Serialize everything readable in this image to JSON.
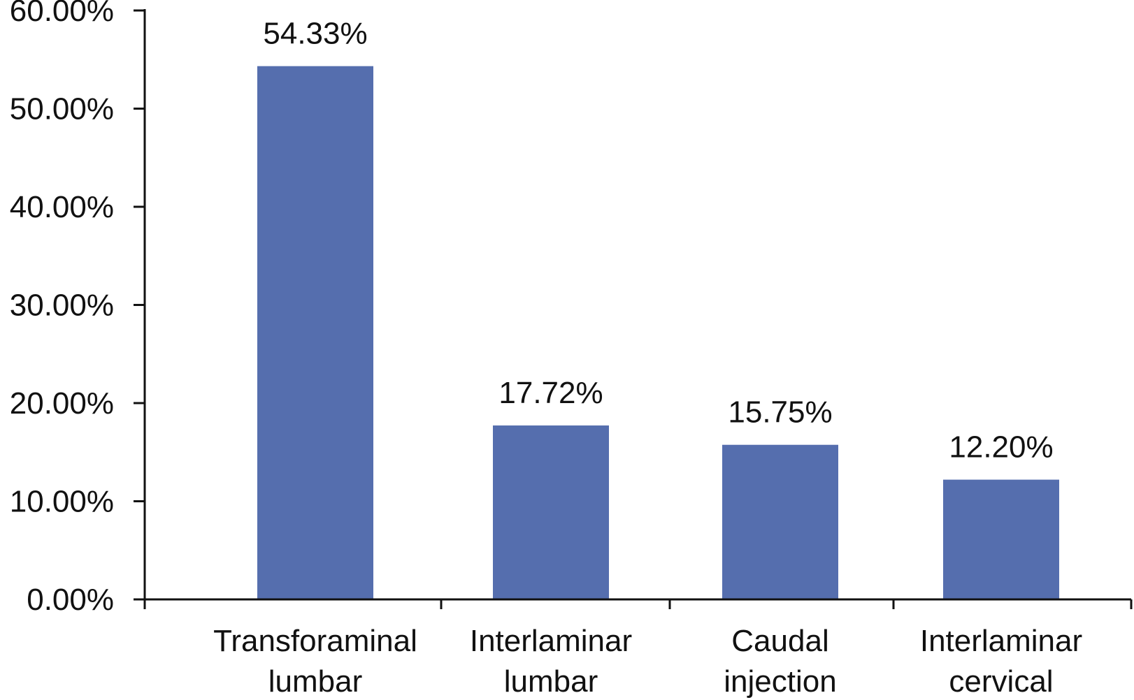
{
  "chart_data": {
    "type": "bar",
    "title": "",
    "xlabel": "",
    "ylabel": "",
    "categories": [
      [
        "Transforaminal",
        "lumbar"
      ],
      [
        "Interlaminar",
        "lumbar"
      ],
      [
        "Caudal",
        "injection"
      ],
      [
        "Interlaminar",
        "cervical"
      ]
    ],
    "values": [
      54.33,
      17.72,
      15.75,
      12.2
    ],
    "data_labels": [
      "54.33%",
      "17.72%",
      "15.75%",
      "12.20%"
    ],
    "ylim": [
      0,
      60
    ],
    "yticks": [
      0,
      10,
      20,
      30,
      40,
      50,
      60
    ],
    "ytick_labels": [
      "0.00%",
      "10.00%",
      "20.00%",
      "30.00%",
      "40.00%",
      "50.00%",
      "60.00%"
    ],
    "grid": false,
    "legend": "none",
    "bar_color": "#556eae",
    "axis_color": "#111111"
  }
}
